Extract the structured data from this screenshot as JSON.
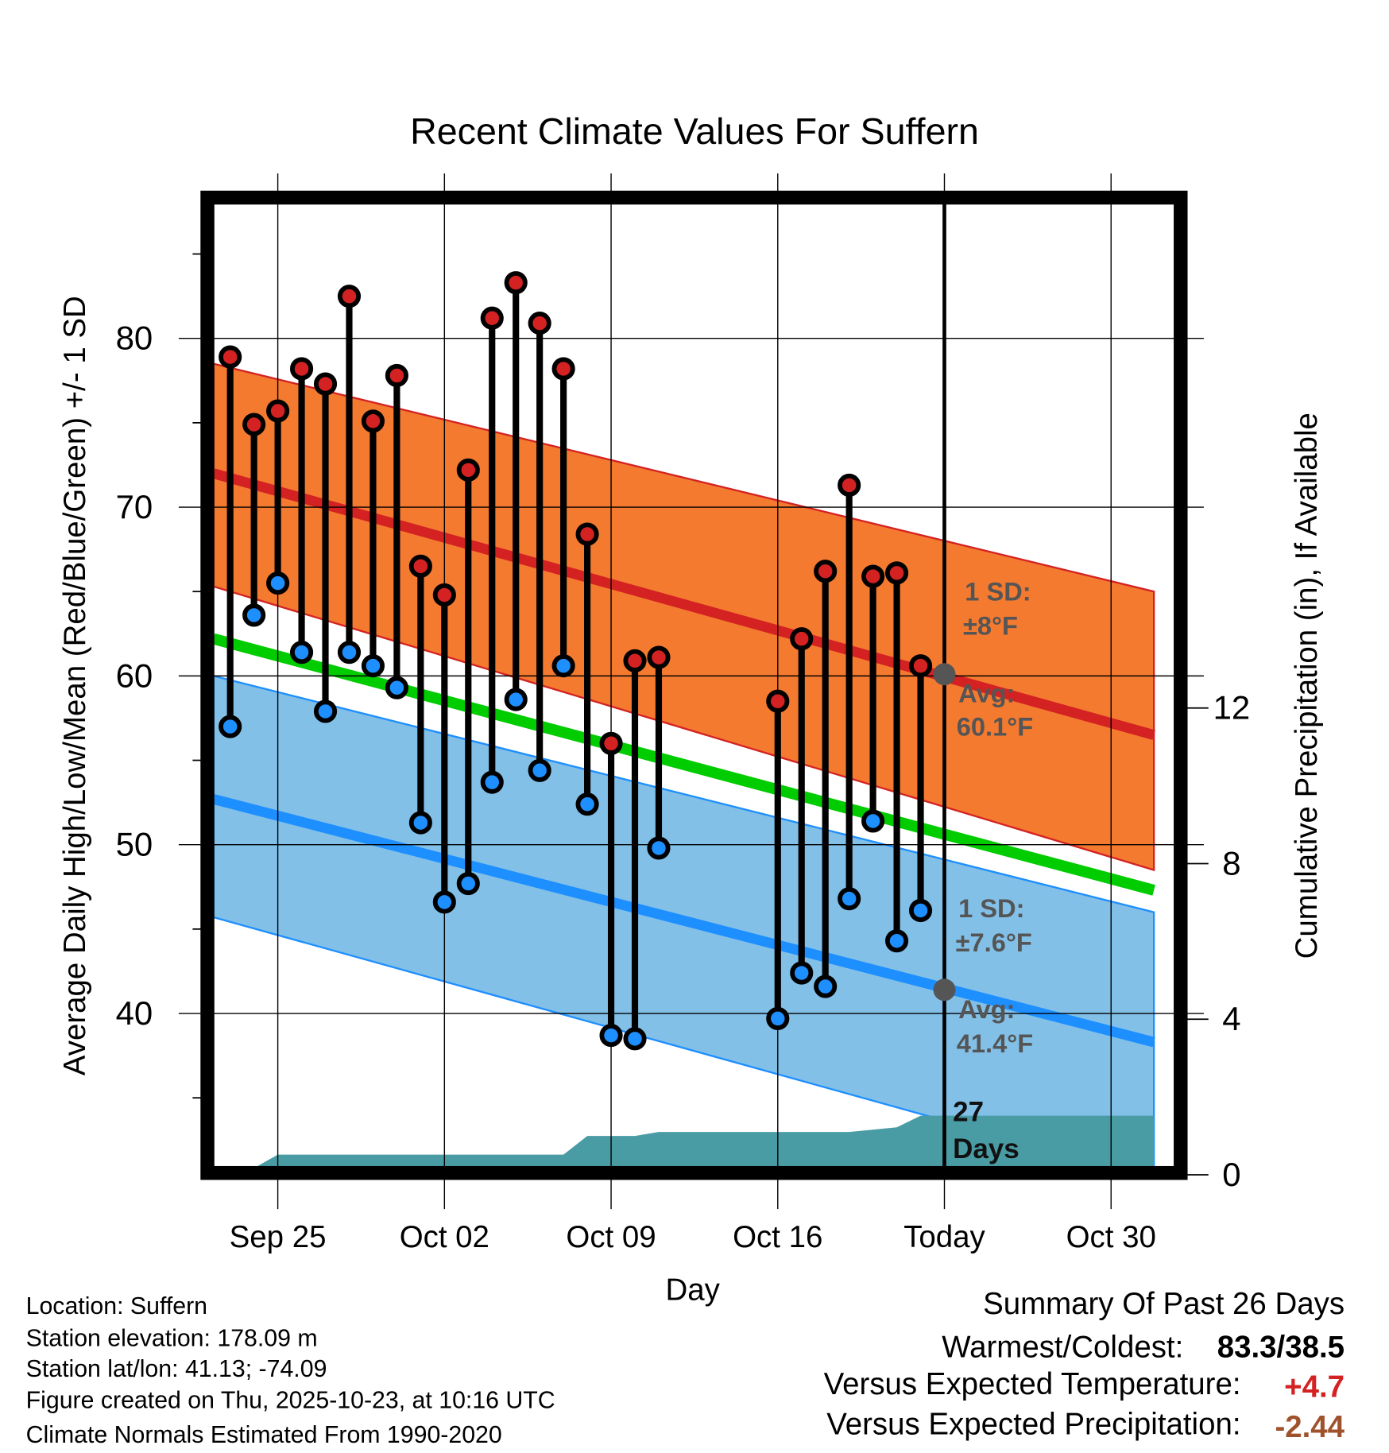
{
  "chart_data": {
    "type": "line",
    "title": "Recent Climate Values For Suffern",
    "xlabel": "Day",
    "ylabel": "Average Daily High/Low/Mean (Red/Blue/Green) +/- 1 SD",
    "y2label": "Cumulative Precipitation (in), If Available",
    "ylim": [
      30.55,
      88.3
    ],
    "y2lim": [
      0,
      23
    ],
    "yticks": [
      40,
      50,
      60,
      70,
      80
    ],
    "y2ticks": [
      0,
      4,
      8,
      12
    ],
    "x_day_offset_from_sep25": [
      0,
      7,
      14,
      21,
      28,
      35
    ],
    "xticks": [
      "Sep 25",
      "Oct 02",
      "Oct 09",
      "Oct 16",
      "Today",
      "Oct 30"
    ],
    "xlim_days": [
      -3,
      37
    ],
    "today_day": 28,
    "grid": true,
    "observations": {
      "days": [
        -2,
        -1,
        0,
        1,
        2,
        3,
        4,
        5,
        6,
        7,
        8,
        9,
        10,
        11,
        12,
        13,
        14,
        15,
        16,
        21,
        22,
        23,
        24,
        25,
        26,
        27
      ],
      "highs": [
        78.9,
        74.9,
        75.7,
        78.2,
        77.3,
        82.5,
        75.1,
        77.8,
        66.5,
        64.8,
        72.2,
        81.2,
        83.3,
        80.9,
        78.2,
        68.4,
        56.0,
        60.9,
        61.1,
        58.5,
        62.2,
        66.2,
        71.3,
        65.9,
        66.1,
        60.6
      ],
      "lows": [
        57.0,
        63.6,
        65.5,
        61.4,
        57.9,
        61.4,
        60.6,
        59.3,
        51.3,
        46.6,
        47.7,
        53.7,
        58.6,
        54.4,
        60.6,
        52.4,
        38.7,
        38.5,
        49.8,
        39.7,
        42.4,
        41.6,
        46.8,
        51.4,
        44.3,
        46.1
      ]
    },
    "normals": {
      "days": [
        -2.7,
        36.8
      ],
      "high_mean": [
        72.0,
        56.5
      ],
      "high_upper": [
        78.5,
        65.0
      ],
      "high_lower": [
        65.3,
        48.5
      ],
      "mean": [
        62.2,
        47.3
      ],
      "low_mean": [
        52.7,
        38.3
      ],
      "low_upper": [
        60.0,
        46.0
      ],
      "low_lower": [
        45.7,
        30.2
      ]
    },
    "precip": {
      "days": [
        -1.5,
        0,
        12,
        13,
        15,
        16,
        24,
        26,
        27,
        36.8
      ],
      "values": [
        0,
        0.52,
        0.52,
        1.0,
        1.0,
        1.1,
        1.1,
        1.22,
        1.52,
        1.52
      ]
    },
    "colors": {
      "high": "#d42222",
      "low": "#1e8fff",
      "mean": "#00cc00",
      "high_band": "#f47a30",
      "low_band": "#82c0e8",
      "precip": "#4a9ca4",
      "annot": "#555555"
    },
    "annotations": {
      "high_sd_label": "1 SD:",
      "high_sd_value": "±8°F",
      "high_avg_label": "Avg:",
      "high_avg_value": "60.1°F",
      "low_sd_label": "1 SD:",
      "low_sd_value": "±7.6°F",
      "low_avg_label": "Avg:",
      "low_avg_value": "41.4°F",
      "precip_days_num": "27",
      "precip_days_word": "Days"
    },
    "today_avg_high": 60.1,
    "today_avg_low": 41.4
  },
  "footer": {
    "location": "Location: Suffern",
    "elevation": "Station elevation: 178.09 m",
    "latlon": "Station lat/lon: 41.13; -74.09",
    "created": "Figure created on Thu, 2025-10-23, at 10:16 UTC",
    "normals": "Climate Normals Estimated From 1990-2020"
  },
  "summary": {
    "title": "Summary Of Past 26 Days",
    "warm_cold_label": "Warmest/Coldest:",
    "warm_cold_value": "83.3/38.5",
    "temp_label": "Versus Expected Temperature:",
    "temp_value": "+4.7",
    "temp_color": "#d42222",
    "precip_label": "Versus Expected Precipitation:",
    "precip_value": "-2.44",
    "precip_color": "#a0522d"
  }
}
